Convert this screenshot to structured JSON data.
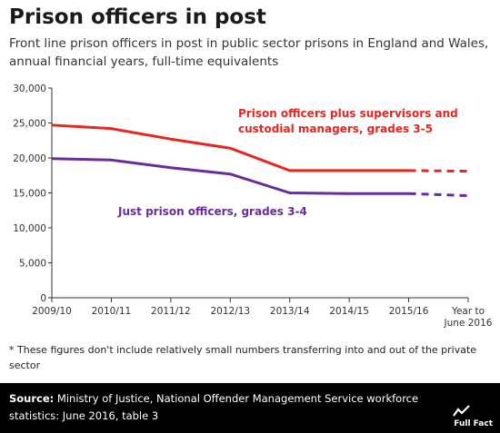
{
  "header": {
    "title": "Prison officers in post",
    "subtitle": "Front line prison officers in post in public sector prisons in England and Wales, annual financial years, full-time equivalents"
  },
  "chart_data": {
    "type": "line",
    "title": "Prison officers in post",
    "subtitle": "Front line prison officers in post in public sector prisons in England and Wales, annual financial years, full-time equivalents",
    "categories": [
      "2009/10",
      "2010/11",
      "2011/12",
      "2012/13",
      "2013/14",
      "2014/15",
      "2015/16",
      "Year to June 2016"
    ],
    "category_lines": [
      [
        "2009/10"
      ],
      [
        "2010/11"
      ],
      [
        "2011/12"
      ],
      [
        "2012/13"
      ],
      [
        "2013/14"
      ],
      [
        "2014/15"
      ],
      [
        "2015/16"
      ],
      [
        "Year to",
        "June 2016"
      ]
    ],
    "ylim": [
      0,
      30000
    ],
    "yticks": [
      0,
      5000,
      10000,
      15000,
      20000,
      25000,
      30000
    ],
    "ytick_labels": [
      "0",
      "5,000",
      "10,000",
      "15,000",
      "20,000",
      "25,000",
      "30,000"
    ],
    "series": [
      {
        "name": "Prison officers plus supervisors and custodial managers, grades 3-5",
        "label_lines": [
          "Prison officers plus supervisors and",
          "custodial managers, grades 3-5"
        ],
        "color": "#e8251f",
        "values": [
          24700,
          24200,
          22700,
          21400,
          18200,
          18200,
          18200,
          18100
        ],
        "dashed_from_index": 6
      },
      {
        "name": "Just prison officers, grades 3-4",
        "label_lines": [
          "Just prison officers, grades 3-4"
        ],
        "color": "#6a2c9c",
        "values": [
          19900,
          19700,
          18600,
          17700,
          15000,
          14900,
          14900,
          14600
        ],
        "dashed_from_index": 6
      }
    ]
  },
  "footnote": "* These figures don't include relatively small numbers transferring into and out of the private sector",
  "source": {
    "label": "Source:",
    "text": " Ministry of Justice, National Offender Management Service workforce statistics: June 2016, table 3"
  },
  "brand": {
    "name": "Full Fact",
    "icon": "full-fact-logo-icon"
  }
}
